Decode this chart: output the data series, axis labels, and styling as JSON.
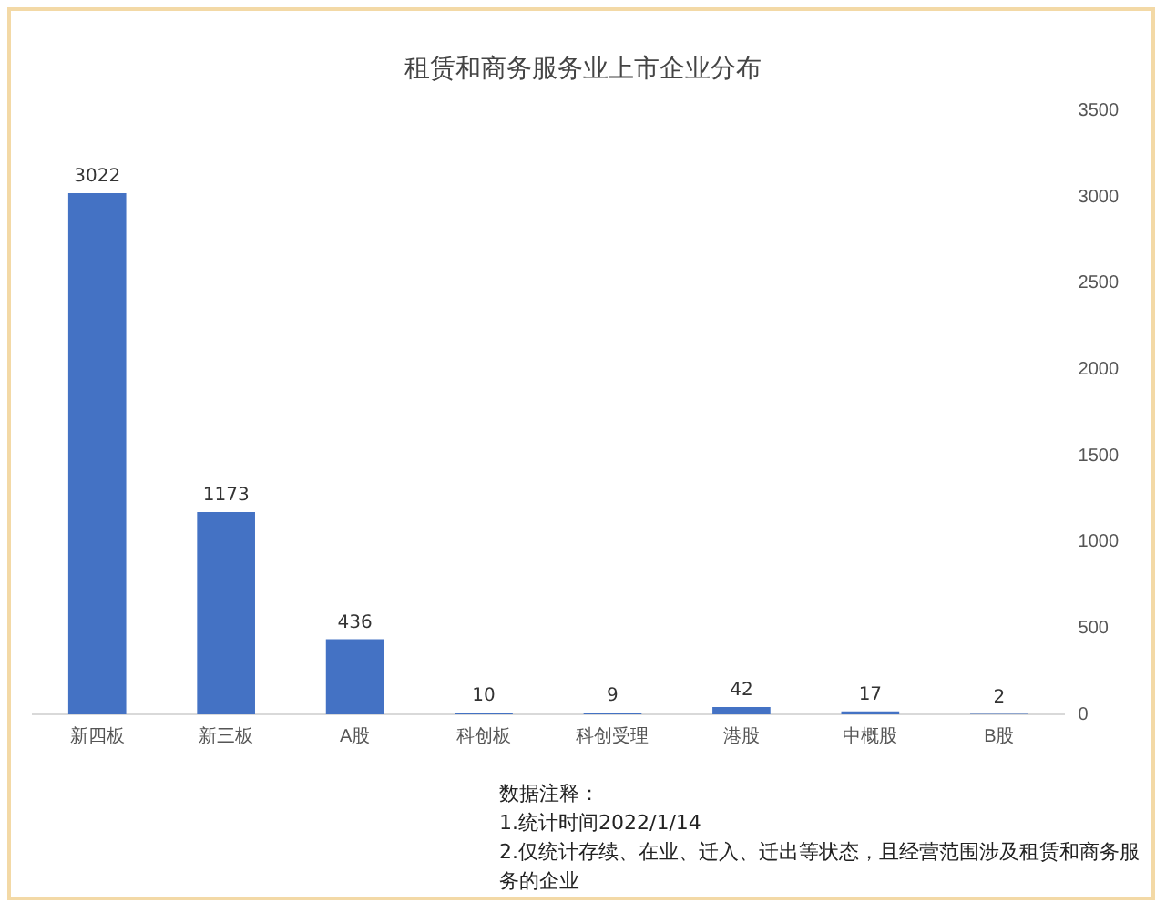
{
  "chart_data": {
    "type": "bar",
    "title": "租赁和商务服务业上市企业分布",
    "categories": [
      "新四板",
      "新三板",
      "A股",
      "科创板",
      "科创受理",
      "港股",
      "中概股",
      "B股"
    ],
    "values": [
      3022,
      1173,
      436,
      10,
      9,
      42,
      17,
      2
    ],
    "color": "#4472c4",
    "ylim": [
      0,
      3500
    ],
    "yticks": [
      0,
      500,
      1000,
      1500,
      2000,
      2500,
      3000,
      3500
    ],
    "grid": false,
    "legend": false,
    "data_labels": true,
    "annotations": [
      "数据注释：",
      "1.统计时间2022/1/14",
      "2.仅统计存续、在业、迁入、迁出等状态，且经营范围涉及租赁和商务服务的企业"
    ]
  }
}
